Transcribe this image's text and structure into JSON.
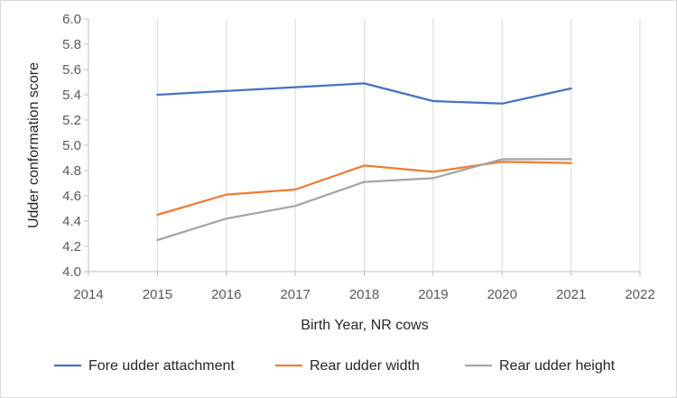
{
  "chart_data": {
    "type": "line",
    "xlabel": "Birth Year, NR cows",
    "ylabel": "Udder conformation score",
    "xlim": [
      2014,
      2022
    ],
    "ylim": [
      4.0,
      6.0
    ],
    "x_ticks": [
      "2014",
      "2015",
      "2016",
      "2017",
      "2018",
      "2019",
      "2020",
      "2021",
      "2022"
    ],
    "y_ticks": [
      "4.0",
      "4.2",
      "4.4",
      "4.6",
      "4.8",
      "5.0",
      "5.2",
      "5.4",
      "5.6",
      "5.8",
      "6.0"
    ],
    "grid": "vertical",
    "legend_position": "bottom",
    "x": [
      2015,
      2016,
      2017,
      2018,
      2019,
      2020,
      2021
    ],
    "series": [
      {
        "name": "Fore udder attachment",
        "color": "#4472c4",
        "values": [
          5.4,
          5.43,
          5.46,
          5.49,
          5.35,
          5.33,
          5.45
        ]
      },
      {
        "name": "Rear udder width",
        "color": "#ed7d31",
        "values": [
          4.45,
          4.61,
          4.65,
          4.84,
          4.79,
          4.87,
          4.86
        ]
      },
      {
        "name": "Rear udder height",
        "color": "#a5a5a5",
        "values": [
          4.25,
          4.42,
          4.52,
          4.71,
          4.74,
          4.89,
          4.89
        ]
      }
    ]
  }
}
